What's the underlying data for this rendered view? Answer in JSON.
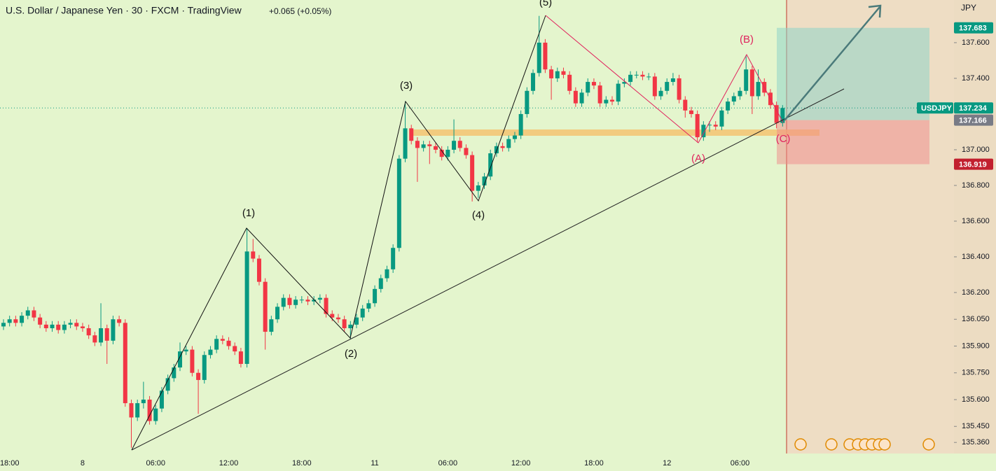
{
  "chart_data": {
    "type": "candlestick",
    "title": "U.S. Dollar / Japanese Yen · 30 · FXCM · TradingView",
    "change": "+0.065 (+0.05%)",
    "y_unit": "JPY",
    "symbol": "USDJPY",
    "last_price": 137.234,
    "target": 137.683,
    "entry": 137.166,
    "stop": 136.919,
    "up_color": "#089981",
    "down_color": "#f23645",
    "annotations": [
      "(1)",
      "(2)",
      "(3)",
      "(4)",
      "(5)",
      "(A)",
      "(B)",
      "(C)"
    ],
    "ylim": [
      135.298,
      137.839
    ],
    "yticks": [
      {
        "value": 137.6,
        "label": "137.600"
      },
      {
        "value": 137.4,
        "label": "137.400"
      },
      {
        "value": 137.0,
        "label": "137.000"
      },
      {
        "value": 136.8,
        "label": "136.800"
      },
      {
        "value": 136.6,
        "label": "136.600"
      },
      {
        "value": 136.4,
        "label": "136.400"
      },
      {
        "value": 136.2,
        "label": "136.200"
      },
      {
        "value": 136.05,
        "label": "136.050"
      },
      {
        "value": 135.9,
        "label": "135.900"
      },
      {
        "value": 135.75,
        "label": "135.750"
      },
      {
        "value": 135.6,
        "label": "135.600"
      },
      {
        "value": 135.45,
        "label": "135.450"
      },
      {
        "value": 135.36,
        "label": "135.360"
      }
    ],
    "categories": [
      null,
      "18:00",
      null,
      null,
      null,
      null,
      null,
      null,
      null,
      null,
      null,
      null,
      null,
      "8",
      null,
      null,
      null,
      null,
      null,
      null,
      null,
      null,
      null,
      null,
      null,
      "06:00",
      null,
      null,
      null,
      null,
      null,
      null,
      null,
      null,
      null,
      null,
      null,
      "12:00",
      null,
      null,
      null,
      null,
      null,
      null,
      null,
      null,
      null,
      null,
      null,
      "18:00",
      null,
      null,
      null,
      null,
      null,
      null,
      null,
      null,
      null,
      null,
      null,
      "11",
      null,
      null,
      null,
      null,
      null,
      null,
      null,
      null,
      null,
      null,
      null,
      "06:00",
      null,
      null,
      null,
      null,
      null,
      null,
      null,
      null,
      null,
      null,
      null,
      "12:00",
      null,
      null,
      null,
      null,
      null,
      null,
      null,
      null,
      null,
      null,
      null,
      "18:00",
      null,
      null,
      null,
      null,
      null,
      null,
      null,
      null,
      null,
      null,
      null,
      "12",
      null,
      null,
      null,
      null,
      null,
      null,
      null,
      null,
      null,
      null,
      null,
      "06:00",
      null,
      null,
      null,
      null,
      null,
      null,
      null
    ],
    "ohlc": [
      [
        136.01,
        136.05,
        135.99,
        136.03
      ],
      [
        136.03,
        136.07,
        136.01,
        136.05
      ],
      [
        136.05,
        136.07,
        136.01,
        136.03
      ],
      [
        136.03,
        136.09,
        136.01,
        136.07
      ],
      [
        136.07,
        136.12,
        136.05,
        136.1
      ],
      [
        136.1,
        136.12,
        136.04,
        136.06
      ],
      [
        136.06,
        136.08,
        136.0,
        136.02
      ],
      [
        136.02,
        136.04,
        135.98,
        136.0
      ],
      [
        136.0,
        136.04,
        135.98,
        136.02
      ],
      [
        136.02,
        136.04,
        135.97,
        135.99
      ],
      [
        135.99,
        136.04,
        135.97,
        136.02
      ],
      [
        136.02,
        136.05,
        136.0,
        136.03
      ],
      [
        136.03,
        136.05,
        135.99,
        136.01
      ],
      [
        136.01,
        136.03,
        135.98,
        136.0
      ],
      [
        136.0,
        136.02,
        135.94,
        135.96
      ],
      [
        135.96,
        135.98,
        135.9,
        135.92
      ],
      [
        135.92,
        136.14,
        135.9,
        136.0
      ],
      [
        136.0,
        136.02,
        135.8,
        135.93
      ],
      [
        135.93,
        136.07,
        135.91,
        136.05
      ],
      [
        136.05,
        136.07,
        136.01,
        136.03
      ],
      [
        136.03,
        136.05,
        135.56,
        135.58
      ],
      [
        135.58,
        135.6,
        135.33,
        135.5
      ],
      [
        135.5,
        135.6,
        135.48,
        135.58
      ],
      [
        135.58,
        135.7,
        135.55,
        135.6
      ],
      [
        135.6,
        135.62,
        135.46,
        135.48
      ],
      [
        135.48,
        135.57,
        135.46,
        135.55
      ],
      [
        135.55,
        135.67,
        135.53,
        135.65
      ],
      [
        135.65,
        135.74,
        135.63,
        135.72
      ],
      [
        135.72,
        135.8,
        135.7,
        135.78
      ],
      [
        135.78,
        135.92,
        135.76,
        135.87
      ],
      [
        135.87,
        135.9,
        135.85,
        135.88
      ],
      [
        135.88,
        135.9,
        135.73,
        135.75
      ],
      [
        135.75,
        135.77,
        135.52,
        135.71
      ],
      [
        135.71,
        135.87,
        135.69,
        135.85
      ],
      [
        135.85,
        135.9,
        135.83,
        135.88
      ],
      [
        135.88,
        135.96,
        135.86,
        135.94
      ],
      [
        135.94,
        135.96,
        135.91,
        135.93
      ],
      [
        135.93,
        135.95,
        135.88,
        135.9
      ],
      [
        135.9,
        135.92,
        135.85,
        135.87
      ],
      [
        135.87,
        135.89,
        135.78,
        135.8
      ],
      [
        135.8,
        136.56,
        135.78,
        136.43
      ],
      [
        136.43,
        136.5,
        136.37,
        136.39
      ],
      [
        136.39,
        136.41,
        136.24,
        136.26
      ],
      [
        136.26,
        136.28,
        135.88,
        135.98
      ],
      [
        135.98,
        136.07,
        135.96,
        136.05
      ],
      [
        136.05,
        136.14,
        136.03,
        136.12
      ],
      [
        136.12,
        136.19,
        136.1,
        136.17
      ],
      [
        136.17,
        136.19,
        136.11,
        136.13
      ],
      [
        136.13,
        136.18,
        136.11,
        136.16
      ],
      [
        136.16,
        136.18,
        136.14,
        136.16
      ],
      [
        136.16,
        136.18,
        136.13,
        136.15
      ],
      [
        136.15,
        136.18,
        136.13,
        136.16
      ],
      [
        136.16,
        136.19,
        136.14,
        136.17
      ],
      [
        136.17,
        136.19,
        136.06,
        136.08
      ],
      [
        136.08,
        136.1,
        136.04,
        136.06
      ],
      [
        136.06,
        136.08,
        136.03,
        136.05
      ],
      [
        136.05,
        136.07,
        135.98,
        136.0
      ],
      [
        136.0,
        136.04,
        135.94,
        136.02
      ],
      [
        136.02,
        136.08,
        136.0,
        136.06
      ],
      [
        136.06,
        136.13,
        136.04,
        136.11
      ],
      [
        136.11,
        136.16,
        136.09,
        136.14
      ],
      [
        136.14,
        136.24,
        136.12,
        136.22
      ],
      [
        136.22,
        136.3,
        136.2,
        136.28
      ],
      [
        136.28,
        136.35,
        136.26,
        136.33
      ],
      [
        136.33,
        136.47,
        136.31,
        136.45
      ],
      [
        136.45,
        136.97,
        136.43,
        136.95
      ],
      [
        136.95,
        137.27,
        136.93,
        137.12
      ],
      [
        137.12,
        137.14,
        137.03,
        137.05
      ],
      [
        137.05,
        137.07,
        136.82,
        137.01
      ],
      [
        137.01,
        137.05,
        136.99,
        137.03
      ],
      [
        137.03,
        137.05,
        136.92,
        137.02
      ],
      [
        137.02,
        137.04,
        136.98,
        137.0
      ],
      [
        137.0,
        137.02,
        136.94,
        136.96
      ],
      [
        136.96,
        137.02,
        136.94,
        137.0
      ],
      [
        137.0,
        137.17,
        136.98,
        137.05
      ],
      [
        137.05,
        137.07,
        136.99,
        137.01
      ],
      [
        137.01,
        137.03,
        136.95,
        136.97
      ],
      [
        136.97,
        136.99,
        136.71,
        136.77
      ],
      [
        136.77,
        136.82,
        136.73,
        136.8
      ],
      [
        136.8,
        136.87,
        136.78,
        136.85
      ],
      [
        136.85,
        137.0,
        136.83,
        136.98
      ],
      [
        136.98,
        137.04,
        136.96,
        137.02
      ],
      [
        137.02,
        137.04,
        136.99,
        137.01
      ],
      [
        137.01,
        137.08,
        136.99,
        137.06
      ],
      [
        137.06,
        137.1,
        137.04,
        137.08
      ],
      [
        137.08,
        137.22,
        137.06,
        137.2
      ],
      [
        137.2,
        137.35,
        137.18,
        137.33
      ],
      [
        137.33,
        137.45,
        137.31,
        137.43
      ],
      [
        137.43,
        137.75,
        137.41,
        137.6
      ],
      [
        137.6,
        137.62,
        137.43,
        137.45
      ],
      [
        137.45,
        137.47,
        137.28,
        137.4
      ],
      [
        137.4,
        137.46,
        137.38,
        137.44
      ],
      [
        137.44,
        137.46,
        137.4,
        137.42
      ],
      [
        137.42,
        137.44,
        137.31,
        137.33
      ],
      [
        137.33,
        137.35,
        137.24,
        137.26
      ],
      [
        137.26,
        137.34,
        137.24,
        137.32
      ],
      [
        137.32,
        137.4,
        137.3,
        137.38
      ],
      [
        137.38,
        137.4,
        137.34,
        137.36
      ],
      [
        137.36,
        137.38,
        137.24,
        137.26
      ],
      [
        137.26,
        137.3,
        137.24,
        137.28
      ],
      [
        137.28,
        137.3,
        137.25,
        137.27
      ],
      [
        137.27,
        137.39,
        137.25,
        137.37
      ],
      [
        137.37,
        137.4,
        137.35,
        137.38
      ],
      [
        137.38,
        137.44,
        137.36,
        137.42
      ],
      [
        137.42,
        137.44,
        137.4,
        137.42
      ],
      [
        137.42,
        137.44,
        137.39,
        137.41
      ],
      [
        137.41,
        137.43,
        137.39,
        137.41
      ],
      [
        137.41,
        137.43,
        137.28,
        137.3
      ],
      [
        137.3,
        137.35,
        137.28,
        137.33
      ],
      [
        137.33,
        137.4,
        137.31,
        137.38
      ],
      [
        137.38,
        137.43,
        137.36,
        137.4
      ],
      [
        137.4,
        137.42,
        137.26,
        137.28
      ],
      [
        137.28,
        137.3,
        137.18,
        137.22
      ],
      [
        137.22,
        137.24,
        137.18,
        137.2
      ],
      [
        137.2,
        137.22,
        137.04,
        137.07
      ],
      [
        137.07,
        137.16,
        137.05,
        137.14
      ],
      [
        137.14,
        137.16,
        137.1,
        137.14
      ],
      [
        137.14,
        137.16,
        137.11,
        137.13
      ],
      [
        137.13,
        137.24,
        137.11,
        137.22
      ],
      [
        137.22,
        137.29,
        137.2,
        137.27
      ],
      [
        137.27,
        137.32,
        137.25,
        137.3
      ],
      [
        137.3,
        137.35,
        137.28,
        137.33
      ],
      [
        137.33,
        137.53,
        137.31,
        137.45
      ],
      [
        137.45,
        137.47,
        137.2,
        137.3
      ],
      [
        137.3,
        137.45,
        137.28,
        137.38
      ],
      [
        137.38,
        137.4,
        137.3,
        137.32
      ],
      [
        137.32,
        137.34,
        137.23,
        137.25
      ],
      [
        137.25,
        137.27,
        137.12,
        137.15
      ],
      [
        137.15,
        137.25,
        137.13,
        137.234
      ]
    ]
  }
}
